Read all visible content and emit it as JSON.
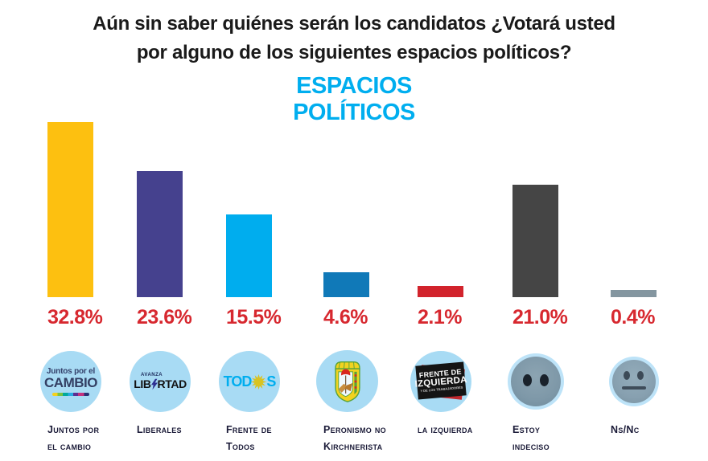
{
  "title_lines": [
    "Aún sin saber quiénes serán los candidatos ¿Votará usted",
    "por alguno de los siguientes espacios políticos?"
  ],
  "subtitle_lines": [
    "ESPACIOS",
    "POLÍTICOS"
  ],
  "colors": {
    "subtitle_cyan": "#00AEEF",
    "value_label_red": "#D7282F",
    "name_label_dark": "#1B1B38",
    "logo_circle_blue": "#A8DBF4"
  },
  "chart_data": {
    "type": "bar",
    "title": "ESPACIOS POLÍTICOS",
    "categories": [
      "Juntos por el Cambio",
      "Liberales",
      "Frente de Todos",
      "Peronismo no Kirchnerista",
      "La Izquierda",
      "Estoy indeciso",
      "Ns/Nc"
    ],
    "values": [
      32.8,
      23.6,
      15.5,
      4.6,
      2.1,
      21.0,
      0.4
    ],
    "value_labels": [
      "32.8%",
      "23.6%",
      "15.5%",
      "4.6%",
      "2.1%",
      "21.0%",
      "0.4%"
    ],
    "bar_colors": [
      "#FDC010",
      "#45418E",
      "#00ADEE",
      "#1079B8",
      "#D2232C",
      "#454545",
      "#8496A0"
    ],
    "value_label_color": "#D7282F",
    "xlabel": "",
    "ylabel": "",
    "ylim": [
      0,
      35
    ],
    "grid": false,
    "legend_position": "none"
  },
  "columns": [
    {
      "value_label": "32.8%",
      "name_line1": "Juntos por",
      "name_line2": "el cambio"
    },
    {
      "value_label": "23.6%",
      "name_line1": "Liberales",
      "name_line2": ""
    },
    {
      "value_label": "15.5%",
      "name_line1": "Frente de",
      "name_line2": "Todos"
    },
    {
      "value_label": "4.6%",
      "name_line1": "Peronismo no",
      "name_line2": "Kirchnerista"
    },
    {
      "value_label": "2.1%",
      "name_line1": "la izquierda",
      "name_line2": ""
    },
    {
      "value_label": "21.0%",
      "name_line1": "Estoy",
      "name_line2": "indeciso"
    },
    {
      "value_label": "0.4%",
      "name_line1": "Ns/Nc",
      "name_line2": ""
    }
  ],
  "logos": {
    "juntos_por_el_cambio": {
      "small_text": "Juntos por el",
      "big_text": "CAMBIO"
    },
    "avanza_libertad": {
      "small_text": "AVANZA",
      "left_text": "LIB",
      "right_text": "RTAD"
    },
    "frente_de_todos": {
      "left_text": "TOD",
      "right_text": "S"
    },
    "frente_de_izquierda": {
      "line1": "FRENTE DE",
      "line2": "IZQUIERDA",
      "line3": "Y DE LOS TRABAJADORES"
    }
  }
}
